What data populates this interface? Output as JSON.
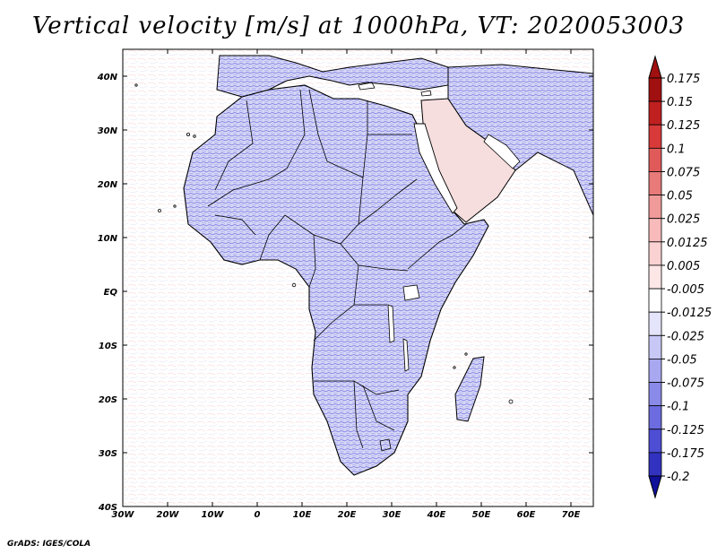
{
  "title": "Vertical velocity [m/s] at 1000hPa, VT: 2020053003",
  "credit": "GrADS: IGES/COLA",
  "map": {
    "lon_range": [
      -30,
      75
    ],
    "lat_range": [
      -40,
      45
    ],
    "lon_ticks": [
      {
        "value": -30,
        "label": "30W"
      },
      {
        "value": -20,
        "label": "20W"
      },
      {
        "value": -10,
        "label": "10W"
      },
      {
        "value": 0,
        "label": "0"
      },
      {
        "value": 10,
        "label": "10E"
      },
      {
        "value": 20,
        "label": "20E"
      },
      {
        "value": 30,
        "label": "30E"
      },
      {
        "value": 40,
        "label": "40E"
      },
      {
        "value": 50,
        "label": "50E"
      },
      {
        "value": 60,
        "label": "60E"
      },
      {
        "value": 70,
        "label": "70E"
      }
    ],
    "lat_ticks": [
      {
        "value": 40,
        "label": "40N"
      },
      {
        "value": 30,
        "label": "30N"
      },
      {
        "value": 20,
        "label": "20N"
      },
      {
        "value": 10,
        "label": "10N"
      },
      {
        "value": 0,
        "label": "EQ"
      },
      {
        "value": -10,
        "label": "10S"
      },
      {
        "value": -20,
        "label": "20S"
      },
      {
        "value": -30,
        "label": "30S"
      },
      {
        "value": -40,
        "label": "40S"
      }
    ],
    "colors": {
      "land_upward": "#7070e0",
      "sea_noise": "#e06a6a",
      "coast": "#000000"
    }
  },
  "colorbar": {
    "levels": [
      {
        "label": "0.175",
        "color": "#a01010"
      },
      {
        "label": "0.15",
        "color": "#c02020"
      },
      {
        "label": "0.125",
        "color": "#d83a3a"
      },
      {
        "label": "0.1",
        "color": "#e05a5a"
      },
      {
        "label": "0.075",
        "color": "#e87a7a"
      },
      {
        "label": "0.05",
        "color": "#f09a9a"
      },
      {
        "label": "0.025",
        "color": "#f8baba"
      },
      {
        "label": "0.0125",
        "color": "#fad2d2"
      },
      {
        "label": "0.005",
        "color": "#fce6e6"
      },
      {
        "label": "-0.005",
        "color": "#ffffff"
      },
      {
        "label": "-0.0125",
        "color": "#e4e4fa"
      },
      {
        "label": "-0.025",
        "color": "#c8c8f6"
      },
      {
        "label": "-0.05",
        "color": "#a8a8f0"
      },
      {
        "label": "-0.075",
        "color": "#8a8ae8"
      },
      {
        "label": "-0.1",
        "color": "#6c6ce0"
      },
      {
        "label": "-0.125",
        "color": "#4e4ed4"
      },
      {
        "label": "-0.175",
        "color": "#3232c0"
      },
      {
        "label": "-0.2",
        "color": "#1c1ca8"
      }
    ],
    "top_arrow_color": "#a01010",
    "bottom_arrow_color": "#10109a"
  }
}
